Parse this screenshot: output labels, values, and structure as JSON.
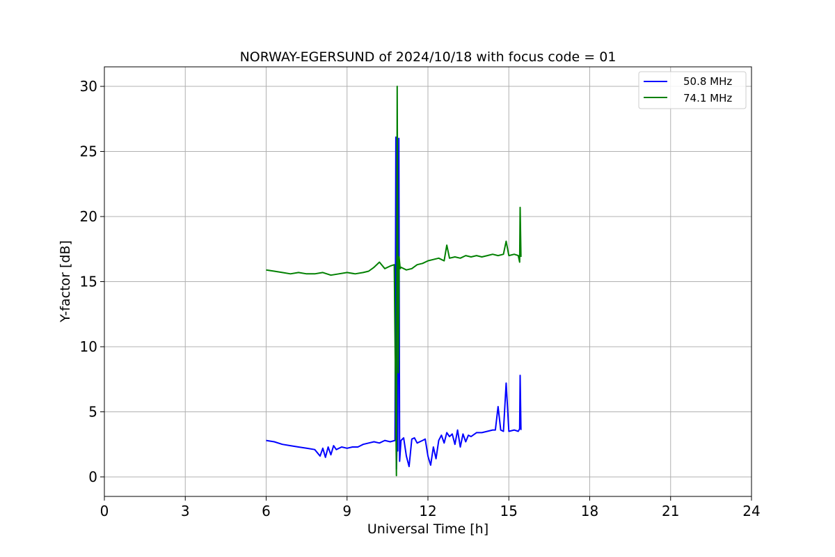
{
  "chart_data": {
    "type": "line",
    "title": "NORWAY-EGERSUND of 2024/10/18 with focus code = 01",
    "xlabel": "Universal Time [h]",
    "ylabel": "Y-factor [dB]",
    "xlim": [
      0,
      24
    ],
    "ylim": [
      -1.5,
      31.5
    ],
    "xticks": [
      0,
      3,
      6,
      9,
      12,
      15,
      18,
      21,
      24
    ],
    "yticks": [
      0,
      5,
      10,
      15,
      20,
      25,
      30
    ],
    "grid": true,
    "legend_position": "top-right",
    "series": [
      {
        "name": "50.8 MHz",
        "color": "#0000ff",
        "x": [
          6.0,
          6.3,
          6.6,
          6.9,
          7.2,
          7.5,
          7.8,
          8.0,
          8.1,
          8.2,
          8.3,
          8.4,
          8.5,
          8.6,
          8.8,
          9.0,
          9.2,
          9.4,
          9.5,
          9.6,
          9.8,
          10.0,
          10.2,
          10.4,
          10.6,
          10.78,
          10.81,
          10.83,
          10.86,
          10.88,
          10.92,
          10.95,
          11.0,
          11.1,
          11.2,
          11.3,
          11.4,
          11.5,
          11.6,
          11.8,
          11.9,
          12.0,
          12.1,
          12.2,
          12.3,
          12.4,
          12.5,
          12.6,
          12.7,
          12.8,
          12.9,
          13.0,
          13.1,
          13.2,
          13.3,
          13.4,
          13.5,
          13.6,
          13.8,
          14.0,
          14.2,
          14.4,
          14.5,
          14.6,
          14.7,
          14.8,
          14.9,
          15.0,
          15.2,
          15.35,
          15.4,
          15.42,
          15.45
        ],
        "y": [
          2.8,
          2.7,
          2.5,
          2.4,
          2.3,
          2.2,
          2.1,
          1.6,
          2.2,
          1.5,
          2.3,
          1.7,
          2.4,
          2.1,
          2.3,
          2.2,
          2.3,
          2.3,
          2.4,
          2.5,
          2.6,
          2.7,
          2.6,
          2.8,
          2.7,
          2.8,
          26.1,
          0.6,
          3.1,
          2.0,
          26.0,
          1.2,
          2.8,
          3.0,
          1.6,
          0.8,
          2.9,
          3.0,
          2.6,
          2.8,
          2.9,
          1.6,
          0.9,
          2.3,
          1.4,
          2.8,
          3.2,
          2.6,
          3.4,
          3.1,
          3.3,
          2.5,
          3.6,
          2.3,
          3.3,
          2.7,
          3.2,
          3.1,
          3.4,
          3.4,
          3.5,
          3.6,
          3.6,
          5.4,
          3.6,
          3.5,
          7.2,
          3.5,
          3.6,
          3.5,
          3.7,
          7.8,
          3.6
        ]
      },
      {
        "name": "74.1 MHz",
        "color": "#008000",
        "x": [
          6.0,
          6.3,
          6.6,
          6.9,
          7.2,
          7.5,
          7.8,
          8.1,
          8.4,
          8.7,
          9.0,
          9.3,
          9.6,
          9.8,
          10.0,
          10.2,
          10.4,
          10.6,
          10.75,
          10.83,
          10.86,
          10.9,
          10.93,
          10.97,
          11.0,
          11.2,
          11.4,
          11.6,
          11.8,
          12.0,
          12.2,
          12.4,
          12.6,
          12.7,
          12.8,
          13.0,
          13.2,
          13.4,
          13.6,
          13.8,
          14.0,
          14.2,
          14.4,
          14.6,
          14.8,
          14.9,
          15.0,
          15.2,
          15.35,
          15.4,
          15.42,
          15.45
        ],
        "y": [
          15.9,
          15.8,
          15.7,
          15.6,
          15.7,
          15.6,
          15.6,
          15.7,
          15.5,
          15.6,
          15.7,
          15.6,
          15.7,
          15.8,
          16.1,
          16.5,
          16.0,
          16.2,
          16.3,
          0.1,
          30.0,
          8.0,
          16.9,
          16.0,
          16.1,
          15.9,
          16.0,
          16.3,
          16.4,
          16.6,
          16.7,
          16.8,
          16.6,
          17.8,
          16.8,
          16.9,
          16.8,
          17.0,
          16.9,
          17.0,
          16.9,
          17.0,
          17.1,
          17.0,
          17.1,
          18.1,
          17.0,
          17.1,
          17.0,
          16.5,
          20.7,
          16.9
        ]
      }
    ]
  }
}
